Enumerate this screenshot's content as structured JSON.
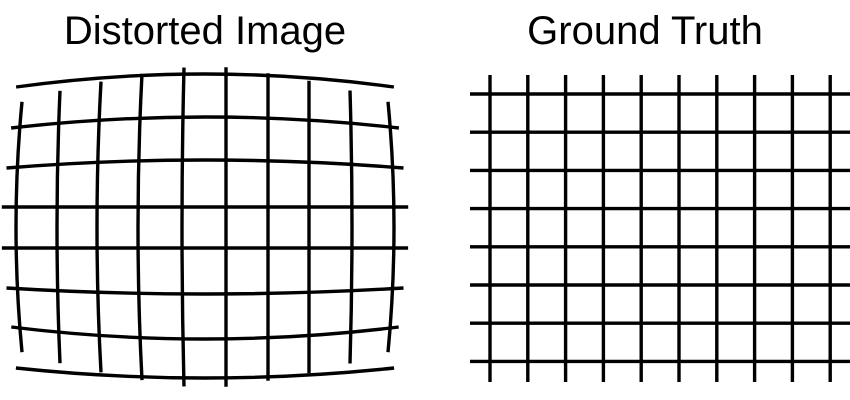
{
  "panels": {
    "distorted": {
      "title": "Distorted Image",
      "grid_lines_horizontal": 8,
      "grid_lines_vertical": 10,
      "distortion": "barrel"
    },
    "ground_truth": {
      "title": "Ground Truth",
      "grid_lines_horizontal": 8,
      "grid_lines_vertical": 10,
      "distortion": "none"
    }
  },
  "colors": {
    "line": "#000000",
    "background": "#ffffff",
    "text": "#000000"
  }
}
